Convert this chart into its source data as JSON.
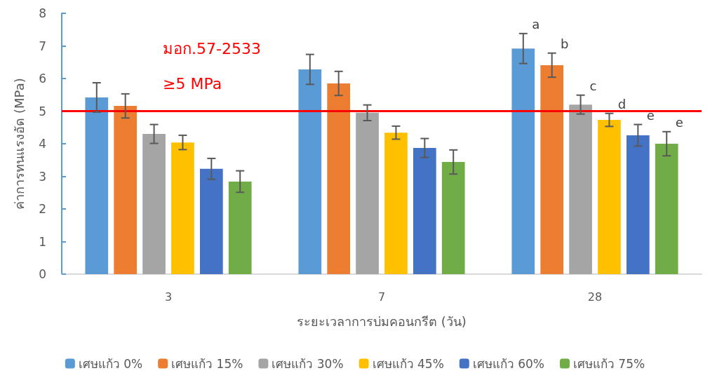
{
  "chart_data": {
    "type": "bar",
    "xlabel": "ระยะเวลาการบ่มคอนกรีต (วัน)",
    "ylabel": "ค่าการทนแรงอัด (MPa)",
    "categories": [
      "3",
      "7",
      "28"
    ],
    "series": [
      {
        "name": "เศษแก้ว 0%",
        "color": "#5b9bd5",
        "values": [
          5.42,
          6.28,
          6.92
        ],
        "errors": [
          0.45,
          0.46,
          0.46
        ],
        "value_labels": [
          null,
          null,
          "a"
        ]
      },
      {
        "name": "เศษแก้ว 15%",
        "color": "#ed7d31",
        "values": [
          5.16,
          5.85,
          6.41
        ],
        "errors": [
          0.37,
          0.37,
          0.37
        ],
        "value_labels": [
          null,
          null,
          "b"
        ]
      },
      {
        "name": "เศษแก้ว 30%",
        "color": "#a5a5a5",
        "values": [
          4.3,
          4.95,
          5.2
        ],
        "errors": [
          0.29,
          0.24,
          0.29
        ],
        "value_labels": [
          null,
          null,
          "c"
        ]
      },
      {
        "name": "เศษแก้ว 45%",
        "color": "#ffc000",
        "values": [
          4.04,
          4.34,
          4.73
        ],
        "errors": [
          0.22,
          0.2,
          0.2
        ],
        "value_labels": [
          null,
          null,
          "d"
        ]
      },
      {
        "name": "เศษแก้ว 60%",
        "color": "#4472c4",
        "values": [
          3.23,
          3.87,
          4.26
        ],
        "errors": [
          0.32,
          0.29,
          0.33
        ],
        "value_labels": [
          null,
          null,
          "e"
        ]
      },
      {
        "name": "เศษแก้ว 75%",
        "color": "#70ad47",
        "values": [
          2.84,
          3.44,
          4.0
        ],
        "errors": [
          0.33,
          0.37,
          0.37
        ],
        "value_labels": [
          null,
          null,
          "e"
        ]
      }
    ],
    "ylim": [
      0,
      8
    ],
    "yticks": [
      0,
      1,
      2,
      3,
      4,
      5,
      6,
      7,
      8
    ],
    "ref_lines": [
      {
        "axis": "y",
        "value": 5,
        "color": "#ff0000"
      }
    ],
    "annotations": [
      "มอก.57-2533",
      "≥5 MPa"
    ],
    "grid": false,
    "legend": "bottom"
  }
}
